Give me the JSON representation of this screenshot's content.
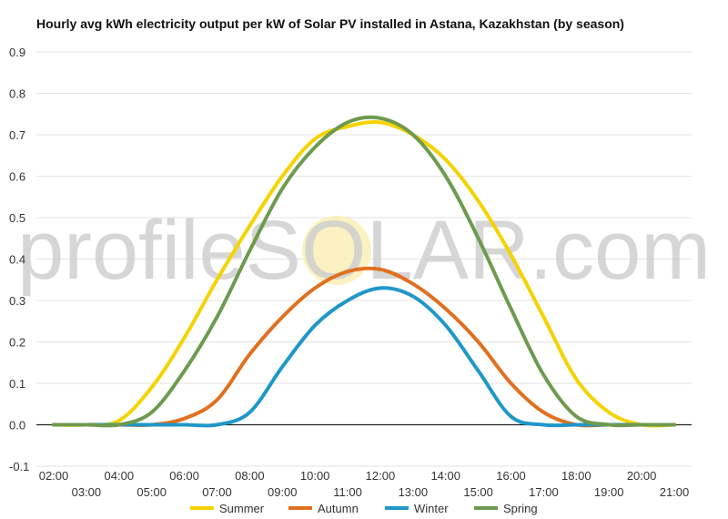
{
  "chart_data": {
    "type": "line",
    "title": "Hourly avg kWh electricity output per kW of Solar PV installed in Astana, Kazakhstan (by season)",
    "xlabel": "",
    "ylabel": "",
    "ylim": [
      -0.1,
      0.9
    ],
    "y_ticks": [
      "-0.1",
      "0.0",
      "0.1",
      "0.2",
      "0.3",
      "0.4",
      "0.5",
      "0.6",
      "0.7",
      "0.8",
      "0.9"
    ],
    "x": [
      "02:00",
      "03:00",
      "04:00",
      "05:00",
      "06:00",
      "07:00",
      "08:00",
      "09:00",
      "10:00",
      "11:00",
      "12:00",
      "13:00",
      "14:00",
      "15:00",
      "16:00",
      "17:00",
      "18:00",
      "19:00",
      "20:00",
      "21:00"
    ],
    "grid": true,
    "legend_position": "bottom",
    "watermark": "profileSOLAR.com",
    "series": [
      {
        "name": "Summer",
        "color": "#F5D300",
        "values": [
          0.0,
          0.0,
          0.01,
          0.09,
          0.21,
          0.35,
          0.48,
          0.6,
          0.69,
          0.72,
          0.73,
          0.7,
          0.64,
          0.54,
          0.41,
          0.26,
          0.11,
          0.03,
          0.0,
          0.0
        ]
      },
      {
        "name": "Autumn",
        "color": "#E07020",
        "values": [
          0.0,
          0.0,
          0.0,
          0.0,
          0.015,
          0.06,
          0.17,
          0.26,
          0.33,
          0.37,
          0.375,
          0.34,
          0.28,
          0.2,
          0.1,
          0.03,
          0.0,
          0.0,
          0.0,
          0.0
        ]
      },
      {
        "name": "Winter",
        "color": "#1F97C9",
        "values": [
          0.0,
          0.0,
          0.0,
          0.0,
          0.0,
          0.0,
          0.03,
          0.14,
          0.24,
          0.3,
          0.33,
          0.31,
          0.24,
          0.13,
          0.02,
          0.0,
          0.0,
          0.0,
          0.0,
          0.0
        ]
      },
      {
        "name": "Spring",
        "color": "#6E9A4E",
        "values": [
          0.0,
          0.0,
          0.0,
          0.03,
          0.13,
          0.26,
          0.42,
          0.57,
          0.67,
          0.73,
          0.74,
          0.7,
          0.6,
          0.45,
          0.28,
          0.12,
          0.02,
          0.0,
          0.0,
          0.0
        ]
      }
    ]
  }
}
